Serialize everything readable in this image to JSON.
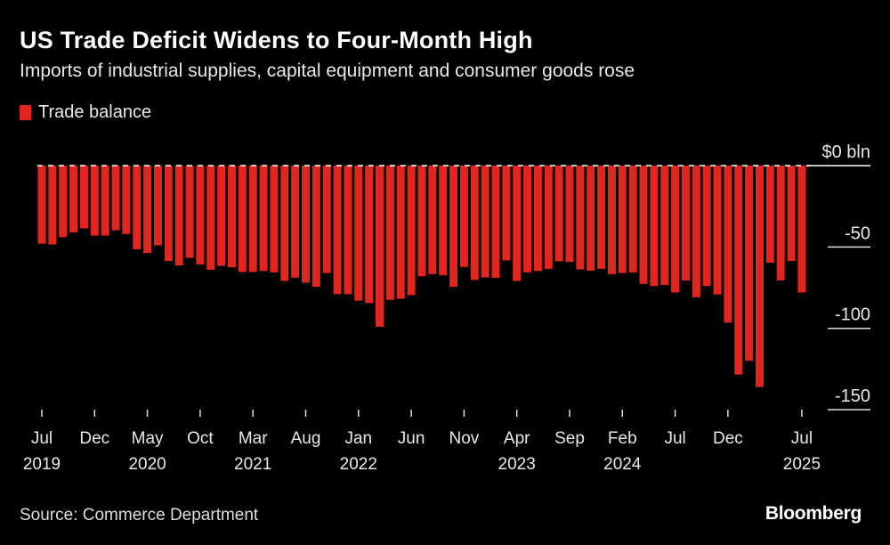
{
  "title": "US Trade Deficit Widens to Four-Month High",
  "subtitle": "Imports of industrial supplies, capital equipment and consumer goods rose",
  "source": "Source: Commerce Department",
  "logo": "Bloomberg",
  "colors": {
    "bar": "#e0261f",
    "background": "#000000",
    "text": "#e8e8e8"
  },
  "chart_data": {
    "type": "bar",
    "legend": {
      "entries": [
        "Trade balance"
      ],
      "placement": "top-left"
    },
    "series": [
      {
        "name": "Trade balance",
        "start": "2019-07",
        "frequency": "monthly",
        "values": [
          -48,
          -48.5,
          -44,
          -41,
          -38.6,
          -43,
          -43,
          -39.7,
          -42,
          -51.5,
          -53.7,
          -49,
          -58.6,
          -61.4,
          -56.7,
          -60.7,
          -64,
          -61.6,
          -62.5,
          -65.4,
          -65.4,
          -64.8,
          -65.6,
          -70.9,
          -68.9,
          -72,
          -74.5,
          -66,
          -79,
          -79,
          -83,
          -84.5,
          -99,
          -82.5,
          -81.8,
          -79.6,
          -68,
          -66.7,
          -67.4,
          -74.5,
          -62.3,
          -70.3,
          -68.7,
          -69,
          -58.3,
          -70.9,
          -65.6,
          -64.8,
          -63.4,
          -58.8,
          -59.2,
          -63.8,
          -64.6,
          -63.4,
          -66.7,
          -66,
          -65.6,
          -72.7,
          -74,
          -73.4,
          -78,
          -70.6,
          -80.9,
          -74,
          -79.2,
          -96.5,
          -128.4,
          -119.9,
          -136,
          -59.7,
          -70.5,
          -58.6,
          -78
        ]
      }
    ],
    "y_axis": {
      "position": "right",
      "unit_label": "$0 bln",
      "ticks": [
        0,
        -50,
        -100,
        -150
      ],
      "tick_labels": [
        "$0 bln",
        "-50",
        "-100",
        "-150"
      ],
      "ylim": [
        -160,
        0
      ]
    },
    "x_axis": {
      "ticks": [
        {
          "month": "Jul",
          "year": "2019"
        },
        {
          "month": "Dec",
          "year": ""
        },
        {
          "month": "May",
          "year": "2020"
        },
        {
          "month": "Oct",
          "year": ""
        },
        {
          "month": "Mar",
          "year": "2021"
        },
        {
          "month": "Aug",
          "year": ""
        },
        {
          "month": "Jan",
          "year": "2022"
        },
        {
          "month": "Jun",
          "year": ""
        },
        {
          "month": "Nov",
          "year": ""
        },
        {
          "month": "Apr",
          "year": "2023"
        },
        {
          "month": "Sep",
          "year": ""
        },
        {
          "month": "Feb",
          "year": "2024"
        },
        {
          "month": "Jul",
          "year": ""
        },
        {
          "month": "Dec",
          "year": ""
        },
        {
          "month": "Jul",
          "year": "2025"
        }
      ],
      "tick_index": [
        0,
        5,
        10,
        15,
        20,
        25,
        30,
        35,
        40,
        45,
        50,
        55,
        60,
        65,
        72
      ]
    },
    "grid": false
  }
}
